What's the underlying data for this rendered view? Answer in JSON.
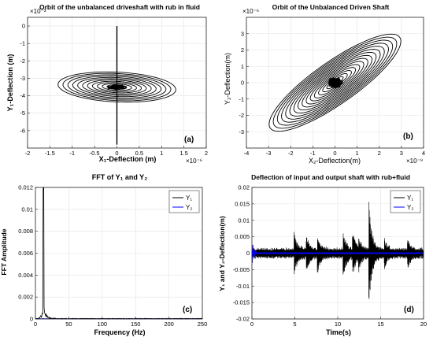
{
  "chart_data": [
    {
      "id": "a",
      "type": "line",
      "title": "Orbit of the unbalanced driveshaft with rub in fluid",
      "xlabel": "X₁-Deflection (m)",
      "ylabel": "Y₁-Deflection (m)",
      "x_exponent": "×10⁻⁶",
      "y_exponent": "×10⁻³",
      "panel_label": "(a)",
      "xlim": [
        -2,
        2
      ],
      "ylim": [
        -7,
        0.5
      ],
      "xticks": [
        -2,
        -1.5,
        -1,
        -0.5,
        0,
        0.5,
        1,
        1.5,
        2
      ],
      "xticklabels": [
        "-2",
        "-1.5",
        "-1",
        "-0.5",
        "0",
        "0.5",
        "1",
        "1.5",
        "2"
      ],
      "yticks": [
        0,
        -1,
        -2,
        -3,
        -4,
        -5,
        -6
      ],
      "yticklabels": [
        "0",
        "-1",
        "-2",
        "-3",
        "-4",
        "-5",
        "-6"
      ],
      "orbit": {
        "center": [
          0,
          -3.5
        ],
        "rx": 1.35,
        "ry": 0.85,
        "tilt": "descending",
        "rings": 12
      },
      "vertical_transient": {
        "x": 0,
        "y_range": [
          0,
          -6.8
        ]
      },
      "grid": true
    },
    {
      "id": "b",
      "type": "line",
      "title": "Orbit of the Unbalanced Driven Shaft",
      "xlabel": "X₂-Deflection(m)",
      "ylabel": "Y₂-Deflection(m)",
      "x_exponent": "×10⁻⁹",
      "y_exponent": "×10⁻⁶",
      "panel_label": "(b)",
      "xlim": [
        -4,
        4
      ],
      "ylim": [
        -4,
        4
      ],
      "xticks": [
        -4,
        -3,
        -2,
        -1,
        0,
        1,
        2,
        3,
        4
      ],
      "xticklabels": [
        "-4",
        "-3",
        "-2",
        "-1",
        "0",
        "1",
        "2",
        "3",
        "4"
      ],
      "yticks": [
        3,
        2,
        1,
        0,
        -1,
        -2,
        -3
      ],
      "yticklabels": [
        "3",
        "2",
        "1",
        "0",
        "-1",
        "-2",
        "-3"
      ],
      "orbit": {
        "center": [
          0,
          0
        ],
        "rx": 3.0,
        "ry": 3.0,
        "tilt": "ascending",
        "rings": 16
      },
      "grid": true
    },
    {
      "id": "c",
      "type": "line",
      "title": "FFT of  Y₁ and  Y₂",
      "xlabel": "Frequency (Hz)",
      "ylabel": "FFT Amplitude",
      "panel_label": "(c)",
      "xlim": [
        0,
        250
      ],
      "ylim": [
        0,
        0.012
      ],
      "xticks": [
        0,
        50,
        100,
        150,
        200,
        250
      ],
      "xticklabels": [
        "0",
        "50",
        "100",
        "150",
        "200",
        "250"
      ],
      "yticks": [
        0,
        0.002,
        0.004,
        0.006,
        0.008,
        0.01,
        0.012
      ],
      "yticklabels": [
        "0",
        "0.002",
        "0.004",
        "0.006",
        "0.008",
        "0.01",
        "0.012"
      ],
      "series": [
        {
          "name": "Y₁",
          "color": "#000000",
          "peak_hz": 12,
          "peak_amplitude": 0.012
        },
        {
          "name": "Y₂",
          "color": "#0000ff",
          "peak_hz": 12,
          "peak_amplitude": 5e-05
        }
      ],
      "legend": "top-right",
      "grid": true
    },
    {
      "id": "d",
      "type": "line",
      "title": "Deflection of input and output shaft with rub+fluid",
      "xlabel": "Time(s)",
      "ylabel": "Y₁ and  Y₂-Deflection(m)",
      "panel_label": "(d)",
      "xlim": [
        0,
        20
      ],
      "ylim": [
        -0.02,
        0.02
      ],
      "xticks": [
        0,
        5,
        10,
        15,
        20
      ],
      "xticklabels": [
        "0",
        "5",
        "10",
        "15",
        "20"
      ],
      "yticks": [
        0.02,
        0.015,
        0.01,
        0.005,
        0,
        -0.005,
        -0.01,
        -0.015,
        -0.02
      ],
      "yticklabels": [
        "0.02",
        "0.015",
        "0.01",
        "0.005",
        "0",
        "-0.005",
        "-0.01",
        "-0.015",
        "-0.02"
      ],
      "bursts": [
        {
          "t": 4.9,
          "amp": 0.006
        },
        {
          "t": 6.3,
          "amp": 0.005
        },
        {
          "t": 7.6,
          "amp": 0.0055
        },
        {
          "t": 10.6,
          "amp": 0.007
        },
        {
          "t": 11.7,
          "amp": 0.006
        },
        {
          "t": 12.4,
          "amp": 0.004
        },
        {
          "t": 13.6,
          "amp": 0.0165
        },
        {
          "t": 15.4,
          "amp": 0.004
        },
        {
          "t": 18.1,
          "amp": 0.004
        }
      ],
      "series": [
        {
          "name": "Y₁",
          "color": "#000000"
        },
        {
          "name": "Y₂",
          "color": "#0000ff"
        }
      ],
      "legend": "top-right",
      "grid": true
    }
  ]
}
